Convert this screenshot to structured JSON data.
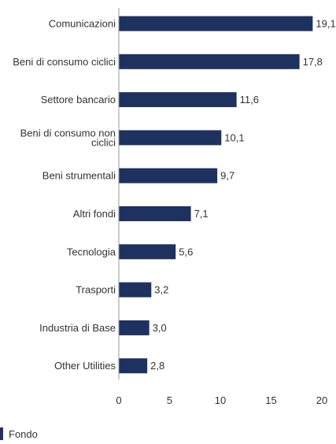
{
  "chart_data": {
    "type": "bar",
    "orientation": "horizontal",
    "categories": [
      [
        "Comunicazioni"
      ],
      [
        "Beni di consumo ciclici"
      ],
      [
        "Settore bancario"
      ],
      [
        "Beni di consumo non",
        "ciclici"
      ],
      [
        "Beni strumentali"
      ],
      [
        "Altri fondi"
      ],
      [
        "Tecnologia"
      ],
      [
        "Trasporti"
      ],
      [
        "Industria di Base"
      ],
      [
        "Other Utilities"
      ]
    ],
    "series": [
      {
        "name": "Fondo",
        "values": [
          19.1,
          17.8,
          11.6,
          10.1,
          9.7,
          7.1,
          5.6,
          3.2,
          3.0,
          2.8
        ],
        "value_labels": [
          "19,1",
          "17,8",
          "11,6",
          "10,1",
          "9,7",
          "7,1",
          "5,6",
          "3,2",
          "3,0",
          "2,8"
        ]
      }
    ],
    "xlim": [
      0,
      20
    ],
    "xticks": [
      0,
      5,
      10,
      15,
      20
    ],
    "xticklabels": [
      "0",
      "5",
      "10",
      "15",
      "20"
    ],
    "grid": false,
    "legend_position": "bottom-left",
    "colors": {
      "bar": "#1e3260",
      "axis": "#999999",
      "text": "#333333"
    }
  }
}
